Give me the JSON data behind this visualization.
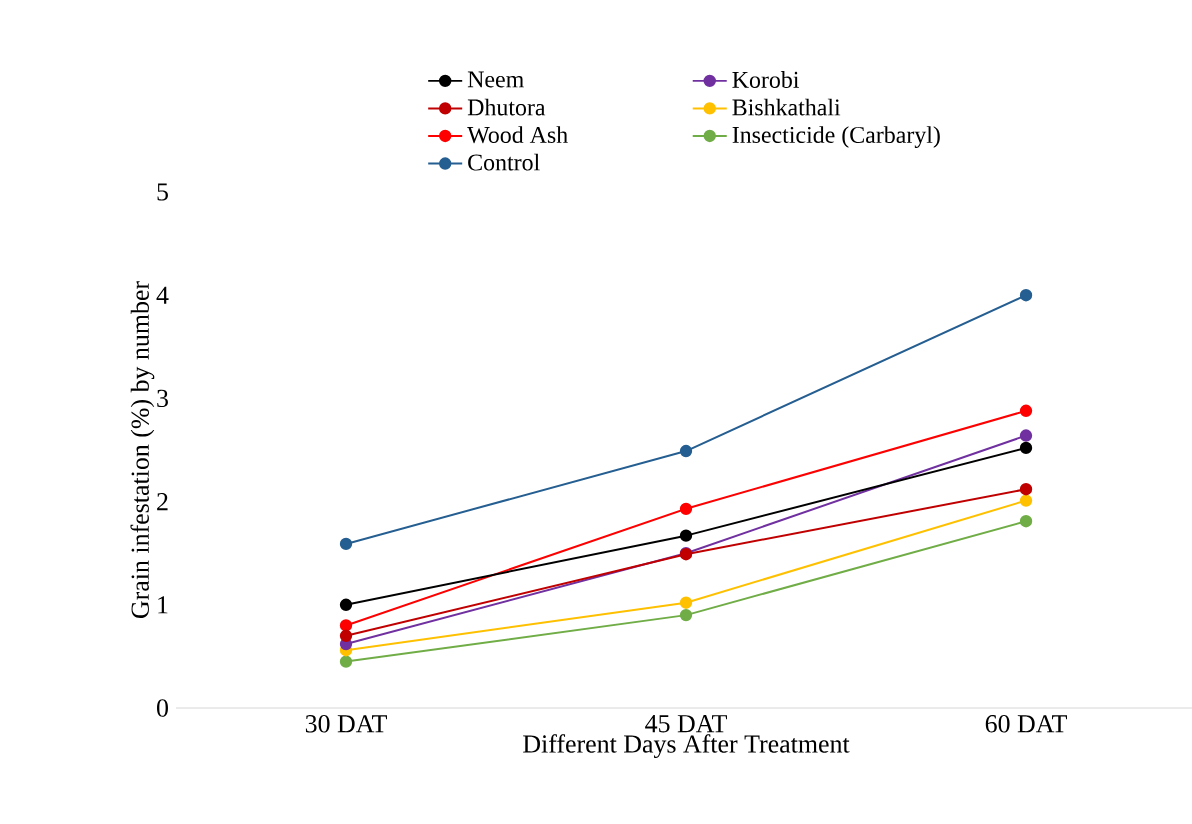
{
  "chart_data": {
    "type": "line",
    "xlabel": "Different Days After Treatment",
    "ylabel": "Grain infestation (%) by number",
    "categories": [
      "30 DAT",
      "45 DAT",
      "60 DAT"
    ],
    "series": [
      {
        "name": "Neem",
        "color": "#000000",
        "values": [
          1.0,
          1.67,
          2.52
        ]
      },
      {
        "name": "Dhutora",
        "color": "#c00000",
        "values": [
          0.7,
          1.49,
          2.12
        ]
      },
      {
        "name": "Wood Ash",
        "color": "#ff0000",
        "values": [
          0.8,
          1.93,
          2.88
        ]
      },
      {
        "name": "Control",
        "color": "#255e91",
        "values": [
          1.59,
          2.49,
          4.0
        ]
      },
      {
        "name": "Korobi",
        "color": "#7030a0",
        "values": [
          0.62,
          1.5,
          2.64
        ]
      },
      {
        "name": "Bishkathali",
        "color": "#ffc000",
        "values": [
          0.56,
          1.02,
          2.01
        ]
      },
      {
        "name": "Insecticide (Carbaryl)",
        "color": "#70ad47",
        "values": [
          0.45,
          0.9,
          1.81
        ]
      }
    ],
    "ylim": [
      0,
      5
    ],
    "yticks": [
      0,
      1,
      2,
      3,
      4,
      5
    ],
    "grid": false,
    "legend": "top",
    "marker": "circle",
    "line_style": "solid"
  }
}
